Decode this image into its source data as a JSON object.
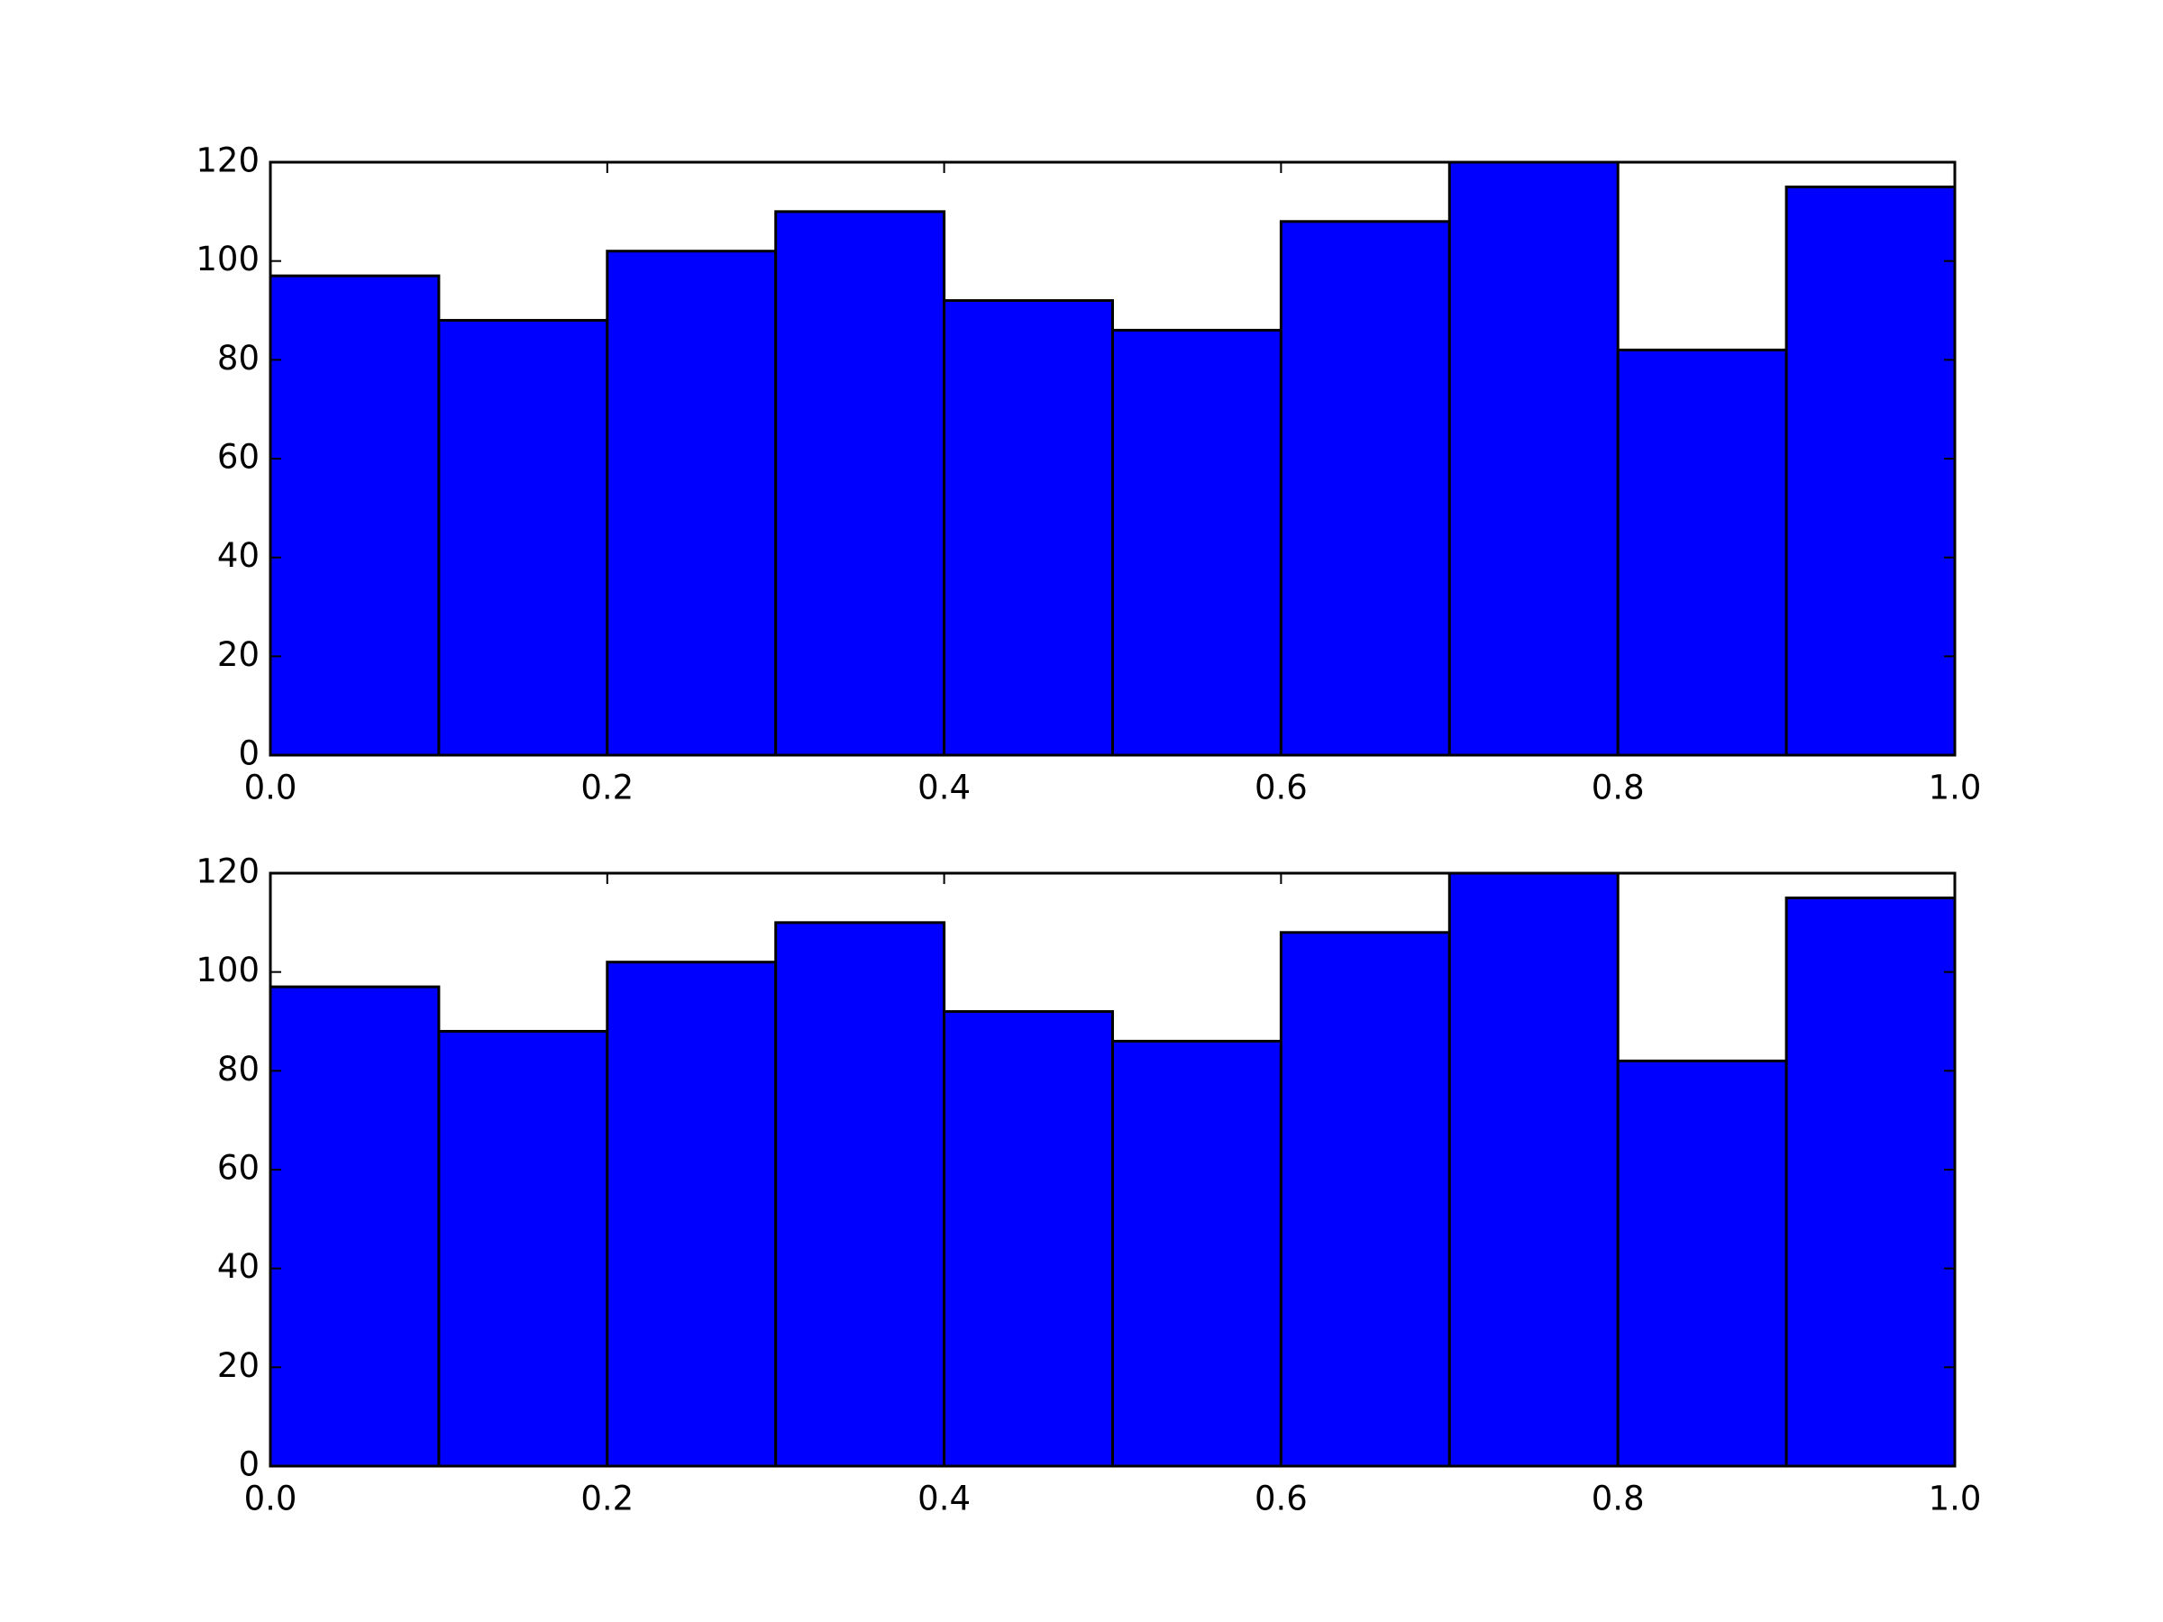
{
  "chart_data": [
    {
      "type": "histogram",
      "bins": [
        0,
        0.1,
        0.2,
        0.3,
        0.4,
        0.5,
        0.6,
        0.7,
        0.8,
        0.9,
        1
      ],
      "values": [
        97,
        88,
        102,
        110,
        92,
        86,
        108,
        120,
        82,
        115
      ],
      "color": "#0000ff",
      "xlim": [
        0,
        1
      ],
      "ylim": [
        0,
        120
      ],
      "xticks": [
        {
          "value": 0,
          "label": "0.0"
        },
        0.2,
        0.4,
        0.6,
        0.8,
        {
          "value": 1,
          "label": "1.0"
        }
      ],
      "yticks": [
        0,
        20,
        40,
        60,
        80,
        100,
        120
      ],
      "grid": false
    },
    {
      "type": "histogram",
      "bins": [
        0,
        0.1,
        0.2,
        0.3,
        0.4,
        0.5,
        0.6,
        0.7,
        0.8,
        0.9,
        1
      ],
      "values": [
        97,
        88,
        102,
        110,
        92,
        86,
        108,
        120,
        82,
        115
      ],
      "color": "#0000ff",
      "xlim": [
        0,
        1
      ],
      "ylim": [
        0,
        120
      ],
      "xticks": [
        {
          "value": 0,
          "label": "0.0"
        },
        0.2,
        0.4,
        0.6,
        0.8,
        {
          "value": 1,
          "label": "1.0"
        }
      ],
      "yticks": [
        0,
        20,
        40,
        60,
        80,
        100,
        120
      ],
      "grid": false
    }
  ]
}
